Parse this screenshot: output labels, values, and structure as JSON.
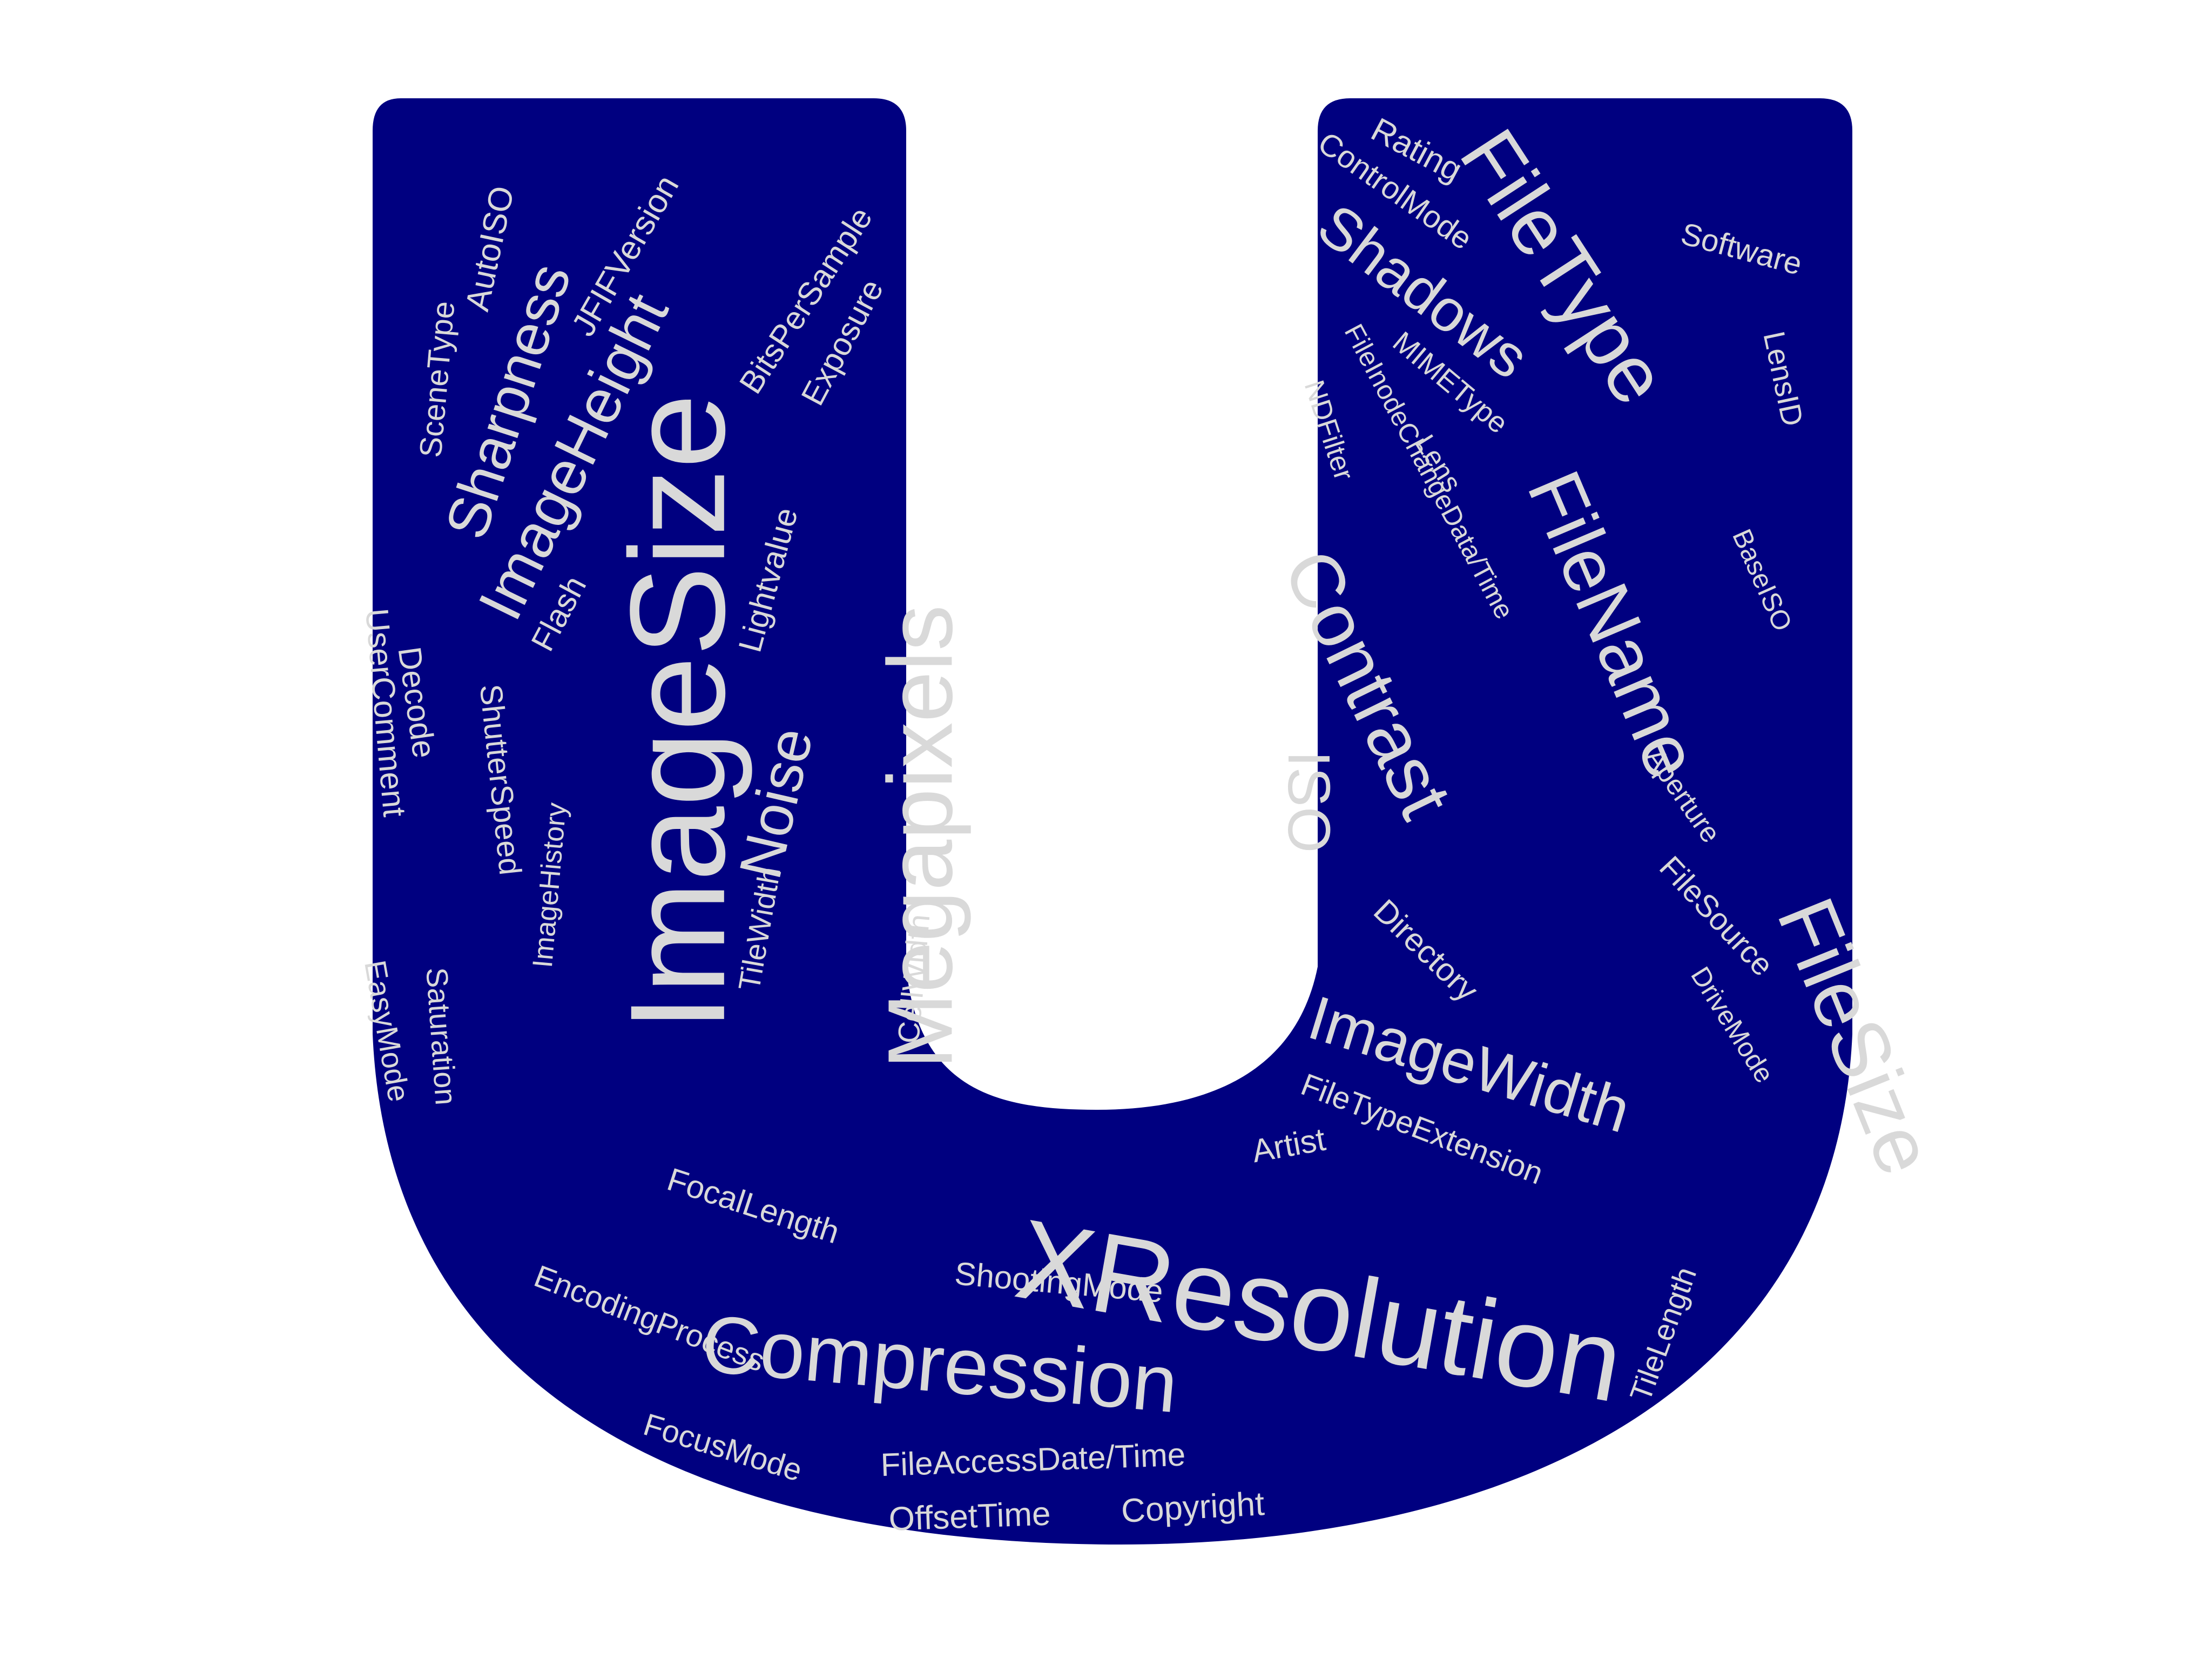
{
  "colors": {
    "background": "#ffffff",
    "shape": "#000080",
    "words": "#d9d9d9"
  },
  "shape": "letter-u",
  "words": [
    {
      "id": "ImageSize",
      "text": "ImageSize"
    },
    {
      "id": "XResolution",
      "text": "XResolution"
    },
    {
      "id": "Megapixels",
      "text": "Megapixels"
    },
    {
      "id": "Compression",
      "text": "Compression"
    },
    {
      "id": "FileType",
      "text": "FileType"
    },
    {
      "id": "FileSize",
      "text": "FileSize"
    },
    {
      "id": "FileName",
      "text": "FileName"
    },
    {
      "id": "Contrast",
      "text": "Contrast"
    },
    {
      "id": "ImageWidth",
      "text": "ImageWidth"
    },
    {
      "id": "ImageHeight",
      "text": "ImageHeight"
    },
    {
      "id": "Shadows",
      "text": "Shadows"
    },
    {
      "id": "Sharpness",
      "text": "Sharpness"
    },
    {
      "id": "Noise",
      "text": "Noise"
    },
    {
      "id": "ISO",
      "text": "ISO"
    },
    {
      "id": "JFIFVersion",
      "text": "JFIFVersion"
    },
    {
      "id": "AutoISO",
      "text": "AutoISO"
    },
    {
      "id": "SceneType",
      "text": "SceneType"
    },
    {
      "id": "BitsPerSample",
      "text": "BitsPerSample"
    },
    {
      "id": "Exposure",
      "text": "Exposure"
    },
    {
      "id": "Lightvalue",
      "text": "Lightvalue"
    },
    {
      "id": "Flash",
      "text": "Flash"
    },
    {
      "id": "UserComment",
      "text": "UserComment"
    },
    {
      "id": "Decode",
      "text": "Decode"
    },
    {
      "id": "ShutterSpeed",
      "text": "ShutterSpeed"
    },
    {
      "id": "ImageHistory",
      "text": "ImageHistory"
    },
    {
      "id": "TileWidth",
      "text": "TileWidth"
    },
    {
      "id": "CellWidth",
      "text": "CellWidth"
    },
    {
      "id": "Saturation",
      "text": "Saturation"
    },
    {
      "id": "EasyMode",
      "text": "EasyMode"
    },
    {
      "id": "Rating",
      "text": "Rating"
    },
    {
      "id": "ControlMode",
      "text": "ControlMode"
    },
    {
      "id": "Software",
      "text": "Software"
    },
    {
      "id": "LensID",
      "text": "LensID"
    },
    {
      "id": "MIMEType",
      "text": "MIMEType"
    },
    {
      "id": "FileInodeChangeDataTime",
      "text": "FileInodeChangeData/Time"
    },
    {
      "id": "NDFilter",
      "text": "NDFilter"
    },
    {
      "id": "Lens",
      "text": "Lens"
    },
    {
      "id": "BaseISO",
      "text": "BaseISO"
    },
    {
      "id": "Aperture",
      "text": "Aperture"
    },
    {
      "id": "FileSource",
      "text": "FileSource"
    },
    {
      "id": "DriveMode",
      "text": "DriveMode"
    },
    {
      "id": "Directory",
      "text": "Directory"
    },
    {
      "id": "FileTypeExtension",
      "text": "FileTypeExtension"
    },
    {
      "id": "Artist",
      "text": "Artist"
    },
    {
      "id": "FocalLength",
      "text": "FocalLength"
    },
    {
      "id": "ShootingMode",
      "text": "ShootingMode"
    },
    {
      "id": "EncodingProcess",
      "text": "EncodingProcess"
    },
    {
      "id": "FileAccessDateTime",
      "text": "FileAccessDate/Time"
    },
    {
      "id": "FocusMode",
      "text": "FocusMode"
    },
    {
      "id": "OffsetTime",
      "text": "OffsetTime"
    },
    {
      "id": "Copyright",
      "text": "Copyright"
    },
    {
      "id": "TileLength",
      "text": "TileLength"
    }
  ]
}
